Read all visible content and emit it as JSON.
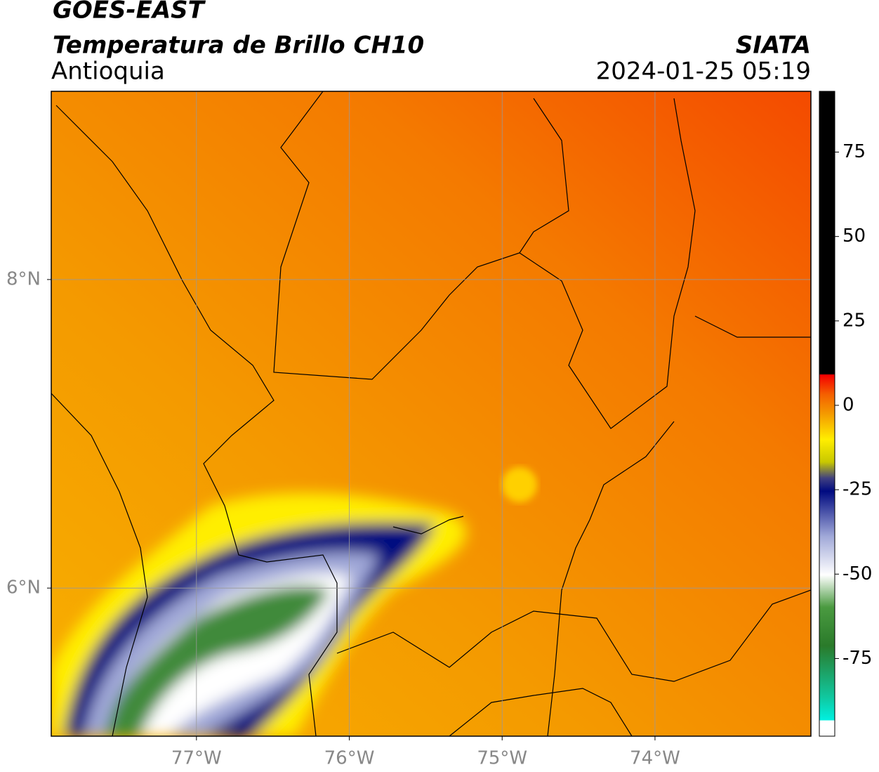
{
  "header": {
    "title": "GOES-EAST",
    "subtitle": "Temperatura de Brillo CH10",
    "region": "Antioquia",
    "source": "SIATA",
    "datetime": "2024-01-25 05:19"
  },
  "map": {
    "xlim": [
      -77.95,
      -72.98
    ],
    "ylim": [
      5.04,
      9.22
    ],
    "xticks": [
      {
        "value": -77,
        "label": "77°W"
      },
      {
        "value": -76,
        "label": "76°W"
      },
      {
        "value": -75,
        "label": "75°W"
      },
      {
        "value": -74,
        "label": "74°W"
      }
    ],
    "yticks": [
      {
        "value": 6,
        "label": "6°N"
      },
      {
        "value": 8,
        "label": "8°N"
      }
    ],
    "grid": true
  },
  "colorbar": {
    "lim": [
      -98,
      93
    ],
    "ticks": [
      -75,
      -50,
      -25,
      0,
      25,
      50,
      75
    ]
  }
}
